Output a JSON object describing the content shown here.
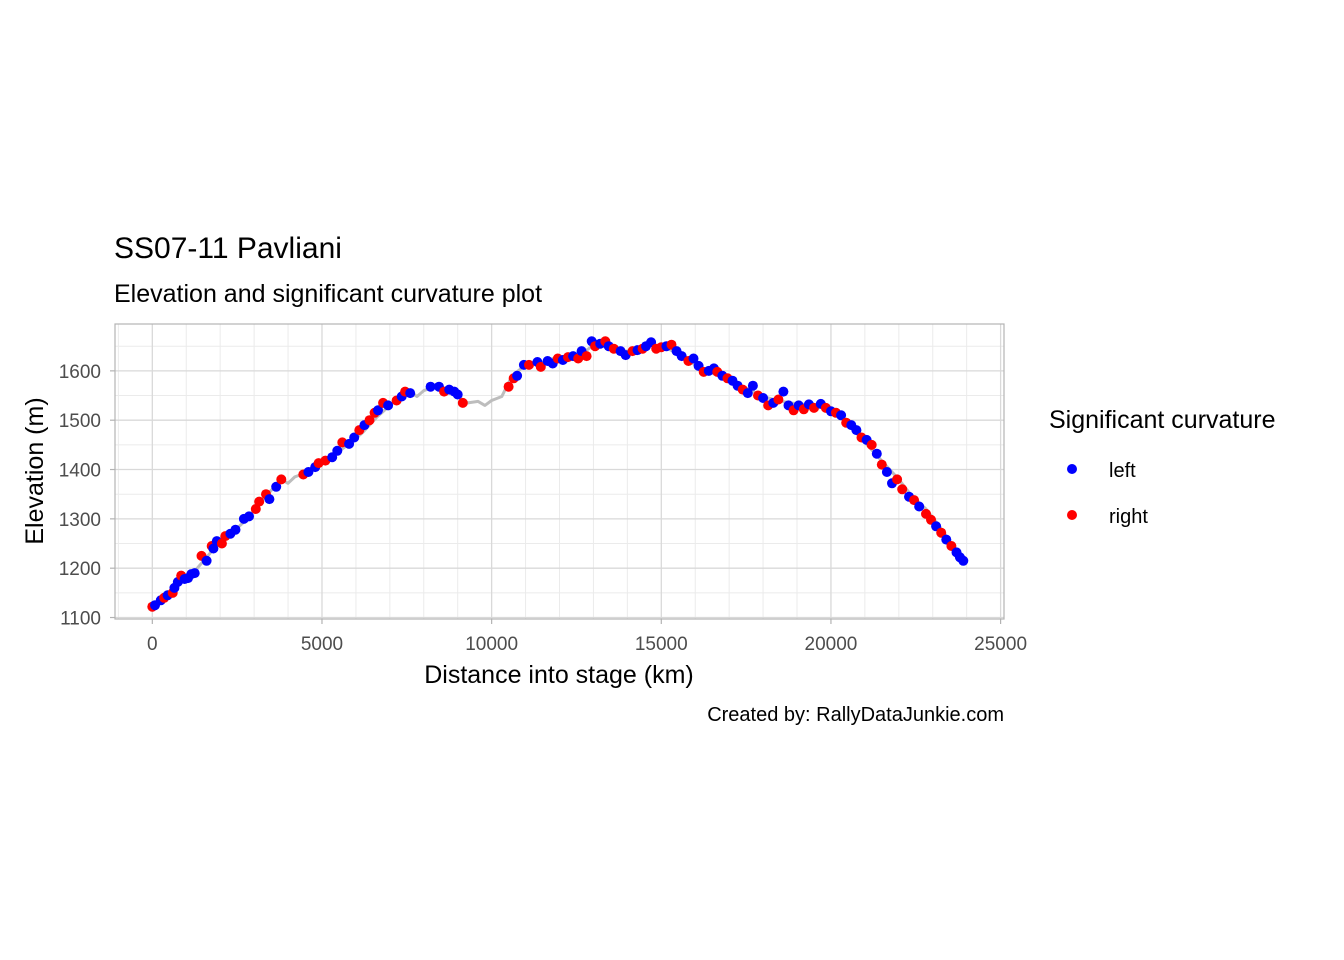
{
  "chart_data": {
    "type": "scatter",
    "title": "SS07-11 Pavliani",
    "subtitle": "Elevation and significant curvature plot",
    "xlabel": "Distance into stage (km)",
    "ylabel": "Elevation (m)",
    "caption": "Created by: RallyDataJunkie.com",
    "xlim": [
      -1100,
      25100
    ],
    "ylim": [
      1097,
      1695
    ],
    "xticks": [
      0,
      5000,
      10000,
      15000,
      20000,
      25000
    ],
    "yticks": [
      1100,
      1200,
      1300,
      1400,
      1500,
      1600
    ],
    "grid": true,
    "legend": {
      "title": "Significant curvature",
      "placement": "right",
      "entries": [
        {
          "label": "left",
          "color": "#0000ff"
        },
        {
          "label": "right",
          "color": "#ff0000"
        }
      ]
    },
    "colors": {
      "left": "#0000ff",
      "right": "#ff0000",
      "profile": "#bdbdbd"
    },
    "profile": [
      [
        0,
        1122
      ],
      [
        400,
        1140
      ],
      [
        800,
        1172
      ],
      [
        1200,
        1190
      ],
      [
        1600,
        1222
      ],
      [
        2000,
        1255
      ],
      [
        2400,
        1275
      ],
      [
        2800,
        1300
      ],
      [
        3200,
        1335
      ],
      [
        3600,
        1365
      ],
      [
        3800,
        1380
      ],
      [
        4000,
        1372
      ],
      [
        4200,
        1385
      ],
      [
        4600,
        1395
      ],
      [
        5000,
        1412
      ],
      [
        5400,
        1432
      ],
      [
        5800,
        1452
      ],
      [
        6200,
        1475
      ],
      [
        6600,
        1505
      ],
      [
        7000,
        1530
      ],
      [
        7400,
        1550
      ],
      [
        7600,
        1557
      ],
      [
        7800,
        1548
      ],
      [
        8000,
        1560
      ],
      [
        8300,
        1567
      ],
      [
        8600,
        1560
      ],
      [
        9000,
        1548
      ],
      [
        9300,
        1535
      ],
      [
        9600,
        1538
      ],
      [
        9800,
        1530
      ],
      [
        10000,
        1540
      ],
      [
        10300,
        1548
      ],
      [
        10600,
        1590
      ],
      [
        11000,
        1612
      ],
      [
        11400,
        1615
      ],
      [
        11800,
        1625
      ],
      [
        12200,
        1630
      ],
      [
        12600,
        1632
      ],
      [
        13000,
        1652
      ],
      [
        13400,
        1648
      ],
      [
        13800,
        1640
      ],
      [
        14200,
        1640
      ],
      [
        14700,
        1652
      ],
      [
        15200,
        1645
      ],
      [
        15600,
        1630
      ],
      [
        16000,
        1612
      ],
      [
        16400,
        1598
      ],
      [
        16800,
        1588
      ],
      [
        17200,
        1575
      ],
      [
        17600,
        1562
      ],
      [
        18000,
        1548
      ],
      [
        18400,
        1540
      ],
      [
        18800,
        1535
      ],
      [
        19200,
        1532
      ],
      [
        19600,
        1530
      ],
      [
        20000,
        1520
      ],
      [
        20400,
        1500
      ],
      [
        20800,
        1470
      ],
      [
        21200,
        1440
      ],
      [
        21600,
        1410
      ],
      [
        22000,
        1380
      ],
      [
        22400,
        1345
      ],
      [
        22800,
        1320
      ],
      [
        23200,
        1285
      ],
      [
        23600,
        1245
      ],
      [
        23900,
        1215
      ]
    ],
    "points": [
      {
        "x": 0,
        "y": 1122,
        "c": "right"
      },
      {
        "x": 80,
        "y": 1125,
        "c": "left"
      },
      {
        "x": 250,
        "y": 1135,
        "c": "left"
      },
      {
        "x": 350,
        "y": 1140,
        "c": "right"
      },
      {
        "x": 450,
        "y": 1145,
        "c": "left"
      },
      {
        "x": 600,
        "y": 1150,
        "c": "right"
      },
      {
        "x": 650,
        "y": 1160,
        "c": "left"
      },
      {
        "x": 750,
        "y": 1172,
        "c": "left"
      },
      {
        "x": 850,
        "y": 1185,
        "c": "right"
      },
      {
        "x": 950,
        "y": 1178,
        "c": "left"
      },
      {
        "x": 1050,
        "y": 1180,
        "c": "left"
      },
      {
        "x": 1150,
        "y": 1188,
        "c": "left"
      },
      {
        "x": 1250,
        "y": 1190,
        "c": "left"
      },
      {
        "x": 1450,
        "y": 1225,
        "c": "right"
      },
      {
        "x": 1600,
        "y": 1215,
        "c": "left"
      },
      {
        "x": 1750,
        "y": 1245,
        "c": "right"
      },
      {
        "x": 1800,
        "y": 1240,
        "c": "left"
      },
      {
        "x": 1900,
        "y": 1255,
        "c": "left"
      },
      {
        "x": 2050,
        "y": 1250,
        "c": "right"
      },
      {
        "x": 2150,
        "y": 1265,
        "c": "right"
      },
      {
        "x": 2300,
        "y": 1270,
        "c": "left"
      },
      {
        "x": 2450,
        "y": 1278,
        "c": "left"
      },
      {
        "x": 2700,
        "y": 1300,
        "c": "left"
      },
      {
        "x": 2850,
        "y": 1305,
        "c": "left"
      },
      {
        "x": 3050,
        "y": 1320,
        "c": "right"
      },
      {
        "x": 3150,
        "y": 1335,
        "c": "right"
      },
      {
        "x": 3350,
        "y": 1350,
        "c": "right"
      },
      {
        "x": 3450,
        "y": 1340,
        "c": "left"
      },
      {
        "x": 3650,
        "y": 1365,
        "c": "left"
      },
      {
        "x": 3800,
        "y": 1380,
        "c": "right"
      },
      {
        "x": 4450,
        "y": 1390,
        "c": "right"
      },
      {
        "x": 4600,
        "y": 1395,
        "c": "left"
      },
      {
        "x": 4800,
        "y": 1405,
        "c": "left"
      },
      {
        "x": 4900,
        "y": 1413,
        "c": "right"
      },
      {
        "x": 5100,
        "y": 1418,
        "c": "right"
      },
      {
        "x": 5300,
        "y": 1425,
        "c": "left"
      },
      {
        "x": 5450,
        "y": 1438,
        "c": "left"
      },
      {
        "x": 5600,
        "y": 1455,
        "c": "right"
      },
      {
        "x": 5800,
        "y": 1452,
        "c": "left"
      },
      {
        "x": 5950,
        "y": 1465,
        "c": "left"
      },
      {
        "x": 6100,
        "y": 1480,
        "c": "right"
      },
      {
        "x": 6250,
        "y": 1490,
        "c": "left"
      },
      {
        "x": 6400,
        "y": 1500,
        "c": "right"
      },
      {
        "x": 6550,
        "y": 1515,
        "c": "right"
      },
      {
        "x": 6650,
        "y": 1520,
        "c": "left"
      },
      {
        "x": 6800,
        "y": 1535,
        "c": "right"
      },
      {
        "x": 6950,
        "y": 1530,
        "c": "left"
      },
      {
        "x": 7200,
        "y": 1540,
        "c": "right"
      },
      {
        "x": 7350,
        "y": 1548,
        "c": "left"
      },
      {
        "x": 7450,
        "y": 1558,
        "c": "right"
      },
      {
        "x": 7600,
        "y": 1555,
        "c": "left"
      },
      {
        "x": 8200,
        "y": 1568,
        "c": "left"
      },
      {
        "x": 8450,
        "y": 1568,
        "c": "left"
      },
      {
        "x": 8600,
        "y": 1558,
        "c": "right"
      },
      {
        "x": 8750,
        "y": 1562,
        "c": "left"
      },
      {
        "x": 8900,
        "y": 1558,
        "c": "left"
      },
      {
        "x": 9000,
        "y": 1552,
        "c": "left"
      },
      {
        "x": 9150,
        "y": 1535,
        "c": "right"
      },
      {
        "x": 10500,
        "y": 1568,
        "c": "right"
      },
      {
        "x": 10650,
        "y": 1585,
        "c": "right"
      },
      {
        "x": 10750,
        "y": 1590,
        "c": "left"
      },
      {
        "x": 10950,
        "y": 1612,
        "c": "left"
      },
      {
        "x": 11100,
        "y": 1612,
        "c": "right"
      },
      {
        "x": 11350,
        "y": 1618,
        "c": "left"
      },
      {
        "x": 11450,
        "y": 1608,
        "c": "right"
      },
      {
        "x": 11650,
        "y": 1620,
        "c": "left"
      },
      {
        "x": 11800,
        "y": 1615,
        "c": "left"
      },
      {
        "x": 11950,
        "y": 1625,
        "c": "right"
      },
      {
        "x": 12100,
        "y": 1622,
        "c": "left"
      },
      {
        "x": 12250,
        "y": 1628,
        "c": "right"
      },
      {
        "x": 12400,
        "y": 1630,
        "c": "left"
      },
      {
        "x": 12550,
        "y": 1625,
        "c": "right"
      },
      {
        "x": 12650,
        "y": 1640,
        "c": "left"
      },
      {
        "x": 12800,
        "y": 1630,
        "c": "right"
      },
      {
        "x": 12950,
        "y": 1660,
        "c": "left"
      },
      {
        "x": 13050,
        "y": 1650,
        "c": "right"
      },
      {
        "x": 13200,
        "y": 1655,
        "c": "left"
      },
      {
        "x": 13350,
        "y": 1660,
        "c": "right"
      },
      {
        "x": 13450,
        "y": 1650,
        "c": "left"
      },
      {
        "x": 13600,
        "y": 1645,
        "c": "right"
      },
      {
        "x": 13800,
        "y": 1640,
        "c": "left"
      },
      {
        "x": 13950,
        "y": 1632,
        "c": "left"
      },
      {
        "x": 14150,
        "y": 1640,
        "c": "right"
      },
      {
        "x": 14300,
        "y": 1642,
        "c": "left"
      },
      {
        "x": 14450,
        "y": 1645,
        "c": "right"
      },
      {
        "x": 14550,
        "y": 1650,
        "c": "left"
      },
      {
        "x": 14700,
        "y": 1658,
        "c": "left"
      },
      {
        "x": 14850,
        "y": 1645,
        "c": "right"
      },
      {
        "x": 15000,
        "y": 1648,
        "c": "right"
      },
      {
        "x": 15150,
        "y": 1650,
        "c": "left"
      },
      {
        "x": 15300,
        "y": 1653,
        "c": "right"
      },
      {
        "x": 15450,
        "y": 1640,
        "c": "left"
      },
      {
        "x": 15600,
        "y": 1630,
        "c": "left"
      },
      {
        "x": 15800,
        "y": 1620,
        "c": "right"
      },
      {
        "x": 15950,
        "y": 1625,
        "c": "left"
      },
      {
        "x": 16100,
        "y": 1610,
        "c": "left"
      },
      {
        "x": 16250,
        "y": 1598,
        "c": "right"
      },
      {
        "x": 16400,
        "y": 1600,
        "c": "left"
      },
      {
        "x": 16550,
        "y": 1605,
        "c": "left"
      },
      {
        "x": 16650,
        "y": 1598,
        "c": "right"
      },
      {
        "x": 16800,
        "y": 1590,
        "c": "left"
      },
      {
        "x": 16950,
        "y": 1585,
        "c": "right"
      },
      {
        "x": 17100,
        "y": 1580,
        "c": "left"
      },
      {
        "x": 17250,
        "y": 1570,
        "c": "left"
      },
      {
        "x": 17400,
        "y": 1562,
        "c": "right"
      },
      {
        "x": 17550,
        "y": 1555,
        "c": "left"
      },
      {
        "x": 17700,
        "y": 1570,
        "c": "left"
      },
      {
        "x": 17850,
        "y": 1550,
        "c": "right"
      },
      {
        "x": 18000,
        "y": 1545,
        "c": "left"
      },
      {
        "x": 18150,
        "y": 1530,
        "c": "right"
      },
      {
        "x": 18300,
        "y": 1535,
        "c": "left"
      },
      {
        "x": 18450,
        "y": 1542,
        "c": "right"
      },
      {
        "x": 18600,
        "y": 1558,
        "c": "left"
      },
      {
        "x": 18750,
        "y": 1530,
        "c": "left"
      },
      {
        "x": 18900,
        "y": 1520,
        "c": "right"
      },
      {
        "x": 19050,
        "y": 1530,
        "c": "left"
      },
      {
        "x": 19200,
        "y": 1522,
        "c": "right"
      },
      {
        "x": 19350,
        "y": 1532,
        "c": "left"
      },
      {
        "x": 19500,
        "y": 1525,
        "c": "right"
      },
      {
        "x": 19700,
        "y": 1533,
        "c": "left"
      },
      {
        "x": 19850,
        "y": 1525,
        "c": "right"
      },
      {
        "x": 20000,
        "y": 1518,
        "c": "left"
      },
      {
        "x": 20150,
        "y": 1515,
        "c": "right"
      },
      {
        "x": 20300,
        "y": 1510,
        "c": "left"
      },
      {
        "x": 20450,
        "y": 1495,
        "c": "right"
      },
      {
        "x": 20600,
        "y": 1490,
        "c": "left"
      },
      {
        "x": 20750,
        "y": 1480,
        "c": "left"
      },
      {
        "x": 20900,
        "y": 1465,
        "c": "right"
      },
      {
        "x": 21050,
        "y": 1460,
        "c": "left"
      },
      {
        "x": 21200,
        "y": 1450,
        "c": "right"
      },
      {
        "x": 21350,
        "y": 1432,
        "c": "left"
      },
      {
        "x": 21500,
        "y": 1410,
        "c": "right"
      },
      {
        "x": 21650,
        "y": 1395,
        "c": "left"
      },
      {
        "x": 21800,
        "y": 1372,
        "c": "left"
      },
      {
        "x": 21950,
        "y": 1380,
        "c": "right"
      },
      {
        "x": 22100,
        "y": 1360,
        "c": "right"
      },
      {
        "x": 22300,
        "y": 1345,
        "c": "left"
      },
      {
        "x": 22450,
        "y": 1338,
        "c": "right"
      },
      {
        "x": 22600,
        "y": 1325,
        "c": "left"
      },
      {
        "x": 22800,
        "y": 1310,
        "c": "right"
      },
      {
        "x": 22950,
        "y": 1298,
        "c": "right"
      },
      {
        "x": 23100,
        "y": 1285,
        "c": "left"
      },
      {
        "x": 23250,
        "y": 1272,
        "c": "right"
      },
      {
        "x": 23400,
        "y": 1258,
        "c": "left"
      },
      {
        "x": 23550,
        "y": 1245,
        "c": "right"
      },
      {
        "x": 23700,
        "y": 1232,
        "c": "left"
      },
      {
        "x": 23800,
        "y": 1222,
        "c": "left"
      },
      {
        "x": 23900,
        "y": 1215,
        "c": "left"
      }
    ]
  }
}
